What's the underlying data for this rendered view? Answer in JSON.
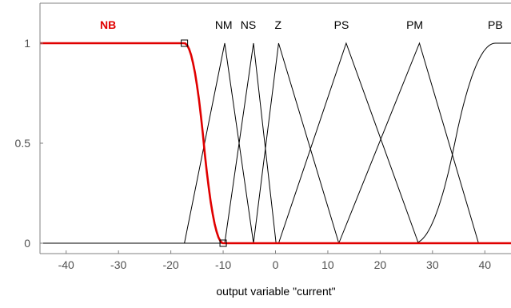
{
  "chart_data": {
    "type": "line",
    "title": "",
    "xlabel": "output variable \"current\"",
    "ylabel": "",
    "xlim": [
      -45,
      45
    ],
    "ylim": [
      0,
      1
    ],
    "x_ticks": [
      -40,
      -30,
      -20,
      -10,
      0,
      10,
      20,
      30,
      40
    ],
    "y_ticks": [
      {
        "value": 0,
        "label": "0"
      },
      {
        "value": 0.5,
        "label": "0.5"
      },
      {
        "value": 1,
        "label": "1"
      }
    ],
    "grid": false,
    "selected_series": "NB",
    "colors": {
      "selected": "#e00000",
      "default": "#000000",
      "axes": "#808080"
    },
    "series": [
      {
        "name": "NB",
        "shape": "zmf",
        "params": [
          -17.4,
          -10
        ],
        "label_x": -32
      },
      {
        "name": "NM",
        "shape": "trimf",
        "points": [
          [
            -17.4,
            0
          ],
          [
            -9.7,
            1
          ],
          [
            -4.2,
            0
          ]
        ],
        "label_x": -9.9
      },
      {
        "name": "NS",
        "shape": "trimf",
        "points": [
          [
            -9.7,
            0
          ],
          [
            -4.2,
            1
          ],
          [
            0.1,
            0
          ]
        ],
        "label_x": -5.2
      },
      {
        "name": "Z",
        "shape": "trimf",
        "points": [
          [
            -4.2,
            0
          ],
          [
            0.6,
            1
          ],
          [
            12.1,
            0
          ]
        ],
        "label_x": 0.5
      },
      {
        "name": "PS",
        "shape": "trimf",
        "points": [
          [
            0.6,
            0
          ],
          [
            13.5,
            1
          ],
          [
            27.3,
            0
          ]
        ],
        "label_x": 12.6
      },
      {
        "name": "PM",
        "shape": "trimf",
        "points": [
          [
            12.1,
            0
          ],
          [
            27.5,
            1
          ],
          [
            38.8,
            0
          ]
        ],
        "label_x": 26.6
      },
      {
        "name": "PB",
        "shape": "smf",
        "params": [
          26.5,
          42
        ],
        "label_x": 42
      }
    ]
  }
}
